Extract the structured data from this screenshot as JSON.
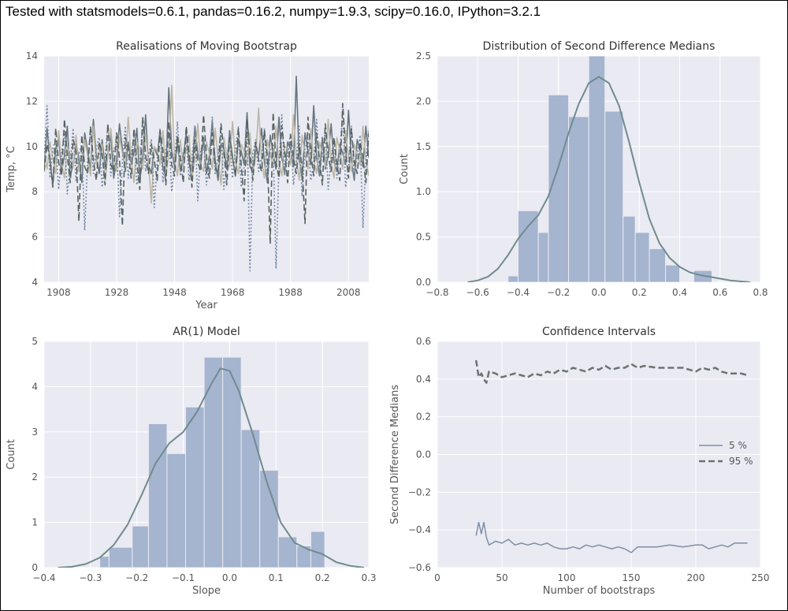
{
  "header": "Tested with statsmodels=0.6.1, pandas=0.16.2, numpy=1.9.3, scipy=0.16.0, IPython=3.2.1",
  "colors": {
    "axes_bg": "#eaeaf2",
    "grid": "#ffffff",
    "bar": "#a5b4cf",
    "kde": "#6f8b8f",
    "line_solid": "#7d8fa4",
    "line_dashed": "#6c7371",
    "realisation_colors": [
      "#66757f",
      "#bdb6a6",
      "#7588a3",
      "#55625e"
    ]
  },
  "chart_data": [
    {
      "id": "realisations",
      "type": "line",
      "title": "Realisations of Moving Bootstrap",
      "xlabel": "Year",
      "ylabel": "Temp, °C",
      "xlim": [
        1903,
        2015
      ],
      "ylim": [
        4,
        14
      ],
      "xticks": [
        1908,
        1928,
        1948,
        1968,
        1988,
        2008
      ],
      "yticks": [
        4,
        6,
        8,
        10,
        12,
        14
      ],
      "x_start": 1903,
      "series": [
        {
          "style": "solid",
          "values": [
            9.1,
            10.8,
            9.4,
            8.3,
            9.9,
            10.4,
            8.9,
            9.6,
            10.9,
            8.7,
            9.2,
            10.1,
            9.5,
            8.4,
            10.6,
            9.8,
            9.0,
            11.2,
            9.6,
            8.8,
            10.3,
            9.1,
            9.7,
            10.5,
            8.6,
            9.4,
            11.0,
            9.9,
            8.9,
            10.2,
            9.3,
            9.7,
            10.8,
            8.5,
            9.5,
            11.4,
            9.2,
            8.8,
            10.0,
            9.6,
            10.7,
            9.0,
            8.7,
            12.6,
            9.8,
            9.1,
            10.2,
            8.9,
            9.5,
            10.6,
            9.3,
            8.6,
            10.9,
            9.7,
            9.2,
            10.4,
            8.8,
            9.6,
            11.1,
            9.4,
            8.5,
            10.1,
            9.9,
            9.0,
            10.7,
            9.5,
            8.7,
            10.3,
            9.8,
            9.2,
            11.5,
            9.1,
            8.9,
            10.0,
            9.6,
            10.8,
            9.3,
            8.4,
            10.5,
            9.7,
            9.0,
            11.3,
            9.5,
            8.8,
            10.2,
            9.9,
            9.1,
            13.1,
            9.4,
            8.6,
            10.6,
            9.8,
            9.2,
            11.8,
            9.5,
            8.7,
            10.4,
            9.0,
            9.6,
            11.0,
            9.3,
            8.9,
            10.1,
            9.7,
            9.2,
            11.6,
            9.4,
            8.5,
            10.3,
            9.8,
            9.1,
            10.9,
            9.5
          ]
        },
        {
          "style": "solid",
          "values": [
            9.8,
            9.0,
            10.2,
            9.5,
            8.8,
            10.7,
            9.3,
            8.6,
            10.0,
            9.7,
            9.1,
            10.5,
            8.9,
            9.4,
            10.3,
            9.6,
            8.7,
            10.9,
            9.2,
            9.8,
            10.1,
            8.5,
            9.6,
            10.8,
            9.4,
            8.9,
            10.4,
            9.7,
            9.1,
            11.3,
            9.5,
            8.4,
            10.2,
            9.9,
            9.0,
            10.6,
            9.3,
            7.5,
            10.0,
            9.8,
            9.2,
            10.7,
            8.8,
            9.6,
            12.7,
            9.4,
            8.7,
            10.3,
            9.1,
            9.9,
            10.5,
            8.6,
            9.5,
            11.0,
            9.2,
            8.9,
            10.2,
            9.7,
            9.0,
            10.8,
            9.5,
            8.3,
            10.4,
            9.6,
            9.1,
            11.1,
            9.3,
            8.8,
            10.1,
            9.8,
            9.2,
            10.6,
            8.9,
            9.5,
            11.7,
            9.4,
            8.6,
            10.3,
            9.7,
            9.1,
            10.9,
            9.3,
            8.7,
            10.0,
            9.9,
            9.2,
            11.4,
            9.5,
            8.5,
            10.5,
            9.6,
            9.0,
            10.8,
            9.4,
            8.8,
            10.2,
            9.7,
            9.1,
            11.2,
            9.3,
            8.6,
            10.4,
            9.8,
            9.0,
            10.7,
            9.5,
            8.9,
            10.1,
            9.6,
            9.2,
            10.9,
            9.4,
            8.7
          ]
        },
        {
          "style": "dotted",
          "values": [
            9.4,
            11.8,
            8.6,
            9.9,
            10.3,
            8.1,
            9.7,
            10.6,
            7.9,
            9.2,
            10.8,
            8.5,
            9.6,
            10.1,
            6.3,
            9.4,
            10.7,
            8.8,
            9.9,
            10.4,
            8.2,
            9.5,
            11.0,
            8.7,
            9.8,
            10.2,
            6.9,
            9.3,
            10.9,
            8.6,
            9.7,
            10.5,
            8.3,
            9.1,
            11.2,
            8.9,
            9.6,
            10.3,
            7.3,
            9.4,
            10.8,
            8.4,
            9.9,
            10.6,
            8.0,
            9.2,
            11.1,
            8.7,
            9.7,
            10.4,
            8.5,
            9.5,
            10.9,
            7.6,
            9.8,
            10.2,
            8.3,
            9.3,
            11.3,
            8.8,
            9.6,
            10.7,
            8.1,
            9.4,
            10.5,
            8.6,
            9.9,
            10.9,
            8.2,
            9.1,
            11.0,
            4.5,
            9.7,
            10.3,
            8.9,
            9.5,
            10.8,
            8.4,
            9.8,
            10.1,
            4.6,
            9.2,
            11.4,
            8.7,
            9.6,
            10.6,
            8.3,
            9.4,
            10.9,
            7.8,
            9.9,
            10.4,
            8.5,
            9.3,
            11.2,
            8.8,
            9.7,
            10.7,
            8.1,
            9.5,
            10.3,
            8.6,
            9.8,
            11.5,
            8.2,
            9.1,
            10.9,
            8.7,
            9.6,
            10.5,
            6.4,
            9.4,
            10.8
          ]
        },
        {
          "style": "dashed",
          "values": [
            8.9,
            10.1,
            9.5,
            8.2,
            10.8,
            9.3,
            8.7,
            11.2,
            9.6,
            8.4,
            10.3,
            9.8,
            6.7,
            10.5,
            9.1,
            8.8,
            10.9,
            9.4,
            8.5,
            10.2,
            9.7,
            8.3,
            11.0,
            9.2,
            8.9,
            10.6,
            9.5,
            6.5,
            10.4,
            9.9,
            8.6,
            10.8,
            9.3,
            8.1,
            11.3,
            9.6,
            8.8,
            10.1,
            9.4,
            8.5,
            10.7,
            9.8,
            8.3,
            11.1,
            9.2,
            8.7,
            10.5,
            9.5,
            8.4,
            10.9,
            9.7,
            8.2,
            10.3,
            9.3,
            8.9,
            11.4,
            9.6,
            8.6,
            10.6,
            9.1,
            8.8,
            11.0,
            9.8,
            8.3,
            10.4,
            9.5,
            8.7,
            10.8,
            9.2,
            7.6,
            11.2,
            9.7,
            8.5,
            10.2,
            9.4,
            8.9,
            10.7,
            9.6,
            5.7,
            11.5,
            9.3,
            8.6,
            10.9,
            9.8,
            8.4,
            10.5,
            9.5,
            8.8,
            10.1,
            9.1,
            6.6,
            11.3,
            9.7,
            8.7,
            10.6,
            9.4,
            8.3,
            11.0,
            9.6,
            8.9,
            10.4,
            9.2,
            8.5,
            11.9,
            9.8,
            8.6,
            10.8,
            9.3,
            8.8,
            10.2,
            9.5,
            8.4,
            10.6
          ]
        }
      ]
    },
    {
      "id": "second-diff",
      "type": "bar",
      "title": "Distribution of Second Difference Medians",
      "xlabel": "",
      "ylabel": "Count",
      "xlim": [
        -0.8,
        0.8
      ],
      "ylim": [
        0,
        2.5
      ],
      "xticks": [
        -0.8,
        -0.6,
        -0.4,
        -0.2,
        0.0,
        0.2,
        0.4,
        0.6,
        0.8
      ],
      "yticks": [
        0.0,
        0.5,
        1.0,
        1.5,
        2.0,
        2.5
      ],
      "tick_decimals": 1,
      "bins": [
        {
          "x0": -0.45,
          "x1": -0.4,
          "value": 0.07
        },
        {
          "x0": -0.4,
          "x1": -0.3,
          "value": 0.79
        },
        {
          "x0": -0.3,
          "x1": -0.25,
          "value": 0.55
        },
        {
          "x0": -0.25,
          "x1": -0.15,
          "value": 2.07
        },
        {
          "x0": -0.15,
          "x1": -0.05,
          "value": 1.83
        },
        {
          "x0": -0.05,
          "x1": 0.03,
          "value": 2.5
        },
        {
          "x0": 0.03,
          "x1": 0.12,
          "value": 1.89
        },
        {
          "x0": 0.12,
          "x1": 0.18,
          "value": 0.73
        },
        {
          "x0": 0.18,
          "x1": 0.25,
          "value": 0.55
        },
        {
          "x0": 0.25,
          "x1": 0.33,
          "value": 0.37
        },
        {
          "x0": 0.33,
          "x1": 0.4,
          "value": 0.19
        },
        {
          "x0": 0.47,
          "x1": 0.56,
          "value": 0.13
        }
      ],
      "kde": {
        "x": [
          -0.65,
          -0.6,
          -0.55,
          -0.5,
          -0.45,
          -0.4,
          -0.35,
          -0.3,
          -0.25,
          -0.2,
          -0.15,
          -0.1,
          -0.05,
          0.0,
          0.05,
          0.1,
          0.15,
          0.2,
          0.25,
          0.3,
          0.35,
          0.4,
          0.45,
          0.5,
          0.55,
          0.6,
          0.65,
          0.7,
          0.75
        ],
        "y": [
          0.0,
          0.02,
          0.06,
          0.15,
          0.3,
          0.48,
          0.62,
          0.74,
          0.95,
          1.28,
          1.65,
          1.97,
          2.2,
          2.27,
          2.2,
          1.95,
          1.55,
          1.1,
          0.7,
          0.43,
          0.27,
          0.17,
          0.11,
          0.08,
          0.06,
          0.04,
          0.02,
          0.01,
          0.0
        ]
      }
    },
    {
      "id": "ar1",
      "type": "bar",
      "title": "AR(1) Model",
      "xlabel": "Slope",
      "ylabel": "Count",
      "xlim": [
        -0.4,
        0.3
      ],
      "ylim": [
        0,
        5
      ],
      "xticks": [
        -0.4,
        -0.3,
        -0.2,
        -0.1,
        0.0,
        0.1,
        0.2,
        0.3
      ],
      "yticks": [
        0,
        1,
        2,
        3,
        4,
        5
      ],
      "tick_decimals": 1,
      "ytick_decimals": 0,
      "bins": [
        {
          "x0": -0.28,
          "x1": -0.26,
          "value": 0.25
        },
        {
          "x0": -0.26,
          "x1": -0.21,
          "value": 0.45
        },
        {
          "x0": -0.21,
          "x1": -0.175,
          "value": 0.92
        },
        {
          "x0": -0.175,
          "x1": -0.135,
          "value": 3.18
        },
        {
          "x0": -0.135,
          "x1": -0.095,
          "value": 2.52
        },
        {
          "x0": -0.095,
          "x1": -0.055,
          "value": 3.55
        },
        {
          "x0": -0.055,
          "x1": -0.015,
          "value": 4.65
        },
        {
          "x0": -0.015,
          "x1": 0.025,
          "value": 4.65
        },
        {
          "x0": 0.025,
          "x1": 0.065,
          "value": 3.05
        },
        {
          "x0": 0.065,
          "x1": 0.105,
          "value": 2.15
        },
        {
          "x0": 0.105,
          "x1": 0.145,
          "value": 0.68
        },
        {
          "x0": 0.145,
          "x1": 0.175,
          "value": 0.48
        },
        {
          "x0": 0.175,
          "x1": 0.205,
          "value": 0.8
        }
      ],
      "kde": {
        "x": [
          -0.37,
          -0.34,
          -0.31,
          -0.28,
          -0.25,
          -0.22,
          -0.19,
          -0.16,
          -0.13,
          -0.1,
          -0.07,
          -0.04,
          -0.02,
          0.0,
          0.02,
          0.05,
          0.08,
          0.11,
          0.14,
          0.17,
          0.2,
          0.23,
          0.26,
          0.29
        ],
        "y": [
          0.0,
          0.02,
          0.08,
          0.22,
          0.5,
          0.95,
          1.6,
          2.3,
          2.75,
          3.0,
          3.45,
          4.05,
          4.4,
          4.35,
          3.9,
          2.95,
          1.9,
          1.0,
          0.55,
          0.4,
          0.3,
          0.12,
          0.04,
          0.0
        ]
      }
    },
    {
      "id": "confidence",
      "type": "line",
      "title": "Confidence Intervals",
      "xlabel": "Number of bootstraps",
      "ylabel": "Second Difference Medians",
      "xlim": [
        0,
        250
      ],
      "ylim": [
        -0.6,
        0.6
      ],
      "xticks": [
        0,
        50,
        100,
        150,
        200,
        250
      ],
      "yticks": [
        -0.6,
        -0.4,
        -0.2,
        0.0,
        0.2,
        0.4,
        0.6
      ],
      "tick_decimals": 1,
      "xtick_decimals": 0,
      "legend_position": "right",
      "series": [
        {
          "name": "5 %",
          "style": "solid",
          "x": [
            30,
            32,
            34,
            36,
            38,
            40,
            45,
            50,
            55,
            60,
            65,
            70,
            75,
            80,
            85,
            90,
            95,
            100,
            105,
            110,
            115,
            120,
            125,
            130,
            135,
            140,
            145,
            150,
            155,
            160,
            170,
            180,
            190,
            200,
            205,
            210,
            215,
            220,
            225,
            230,
            235,
            240
          ],
          "values": [
            -0.43,
            -0.36,
            -0.42,
            -0.36,
            -0.44,
            -0.48,
            -0.46,
            -0.47,
            -0.45,
            -0.48,
            -0.47,
            -0.48,
            -0.47,
            -0.48,
            -0.47,
            -0.49,
            -0.5,
            -0.5,
            -0.49,
            -0.5,
            -0.48,
            -0.49,
            -0.48,
            -0.49,
            -0.5,
            -0.49,
            -0.5,
            -0.52,
            -0.49,
            -0.49,
            -0.49,
            -0.48,
            -0.49,
            -0.48,
            -0.48,
            -0.5,
            -0.49,
            -0.48,
            -0.49,
            -0.47,
            -0.47,
            -0.47
          ]
        },
        {
          "name": "95 %",
          "style": "dashed",
          "x": [
            30,
            32,
            34,
            36,
            38,
            40,
            45,
            50,
            55,
            60,
            65,
            70,
            75,
            80,
            85,
            90,
            95,
            100,
            105,
            110,
            115,
            120,
            125,
            130,
            135,
            140,
            145,
            150,
            155,
            160,
            170,
            180,
            190,
            200,
            205,
            210,
            215,
            220,
            225,
            230,
            235,
            240
          ],
          "values": [
            0.5,
            0.41,
            0.43,
            0.4,
            0.38,
            0.44,
            0.43,
            0.41,
            0.42,
            0.43,
            0.42,
            0.41,
            0.43,
            0.42,
            0.44,
            0.43,
            0.45,
            0.44,
            0.46,
            0.45,
            0.44,
            0.46,
            0.45,
            0.47,
            0.45,
            0.46,
            0.46,
            0.48,
            0.46,
            0.47,
            0.46,
            0.46,
            0.46,
            0.44,
            0.46,
            0.45,
            0.46,
            0.44,
            0.43,
            0.43,
            0.43,
            0.42
          ]
        }
      ]
    }
  ]
}
